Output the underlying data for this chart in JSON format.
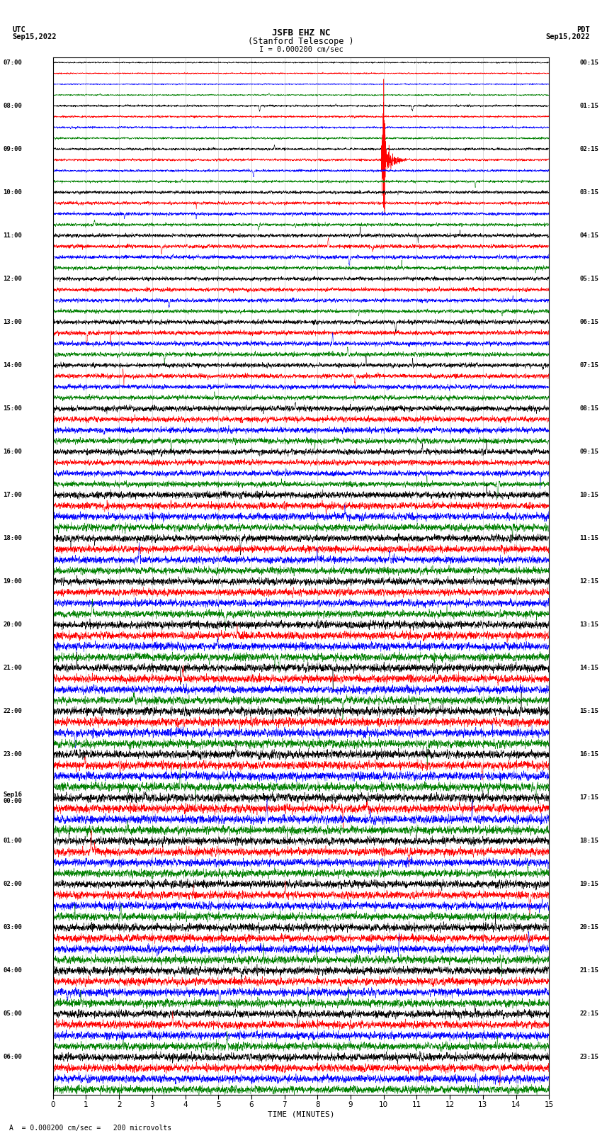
{
  "title_line1": "JSFB EHZ NC",
  "title_line2": "(Stanford Telescope )",
  "scale_label": "I = 0.000200 cm/sec",
  "footnote": "A  = 0.000200 cm/sec =   200 microvolts",
  "x_min": 0,
  "x_max": 15,
  "x_ticks": [
    0,
    1,
    2,
    3,
    4,
    5,
    6,
    7,
    8,
    9,
    10,
    11,
    12,
    13,
    14,
    15
  ],
  "trace_colors": [
    "black",
    "red",
    "blue",
    "green"
  ],
  "background_color": "white",
  "num_rows": 96,
  "row_labels_left": [
    "07:00",
    "",
    "",
    "",
    "08:00",
    "",
    "",
    "",
    "09:00",
    "",
    "",
    "",
    "10:00",
    "",
    "",
    "",
    "11:00",
    "",
    "",
    "",
    "12:00",
    "",
    "",
    "",
    "13:00",
    "",
    "",
    "",
    "14:00",
    "",
    "",
    "",
    "15:00",
    "",
    "",
    "",
    "16:00",
    "",
    "",
    "",
    "17:00",
    "",
    "",
    "",
    "18:00",
    "",
    "",
    "",
    "19:00",
    "",
    "",
    "",
    "20:00",
    "",
    "",
    "",
    "21:00",
    "",
    "",
    "",
    "22:00",
    "",
    "",
    "",
    "23:00",
    "",
    "",
    "",
    "Sep16\n00:00",
    "",
    "",
    "",
    "01:00",
    "",
    "",
    "",
    "02:00",
    "",
    "",
    "",
    "03:00",
    "",
    "",
    "",
    "04:00",
    "",
    "",
    "",
    "05:00",
    "",
    "",
    "",
    "06:00",
    "",
    "",
    ""
  ],
  "row_labels_right": [
    "00:15",
    "",
    "",
    "",
    "01:15",
    "",
    "",
    "",
    "02:15",
    "",
    "",
    "",
    "03:15",
    "",
    "",
    "",
    "04:15",
    "",
    "",
    "",
    "05:15",
    "",
    "",
    "",
    "06:15",
    "",
    "",
    "",
    "07:15",
    "",
    "",
    "",
    "08:15",
    "",
    "",
    "",
    "09:15",
    "",
    "",
    "",
    "10:15",
    "",
    "",
    "",
    "11:15",
    "",
    "",
    "",
    "12:15",
    "",
    "",
    "",
    "13:15",
    "",
    "",
    "",
    "14:15",
    "",
    "",
    "",
    "15:15",
    "",
    "",
    "",
    "16:15",
    "",
    "",
    "",
    "17:15",
    "",
    "",
    "",
    "18:15",
    "",
    "",
    "",
    "19:15",
    "",
    "",
    "",
    "20:15",
    "",
    "",
    "",
    "21:15",
    "",
    "",
    "",
    "22:15",
    "",
    "",
    "",
    "23:15",
    "",
    "",
    ""
  ]
}
